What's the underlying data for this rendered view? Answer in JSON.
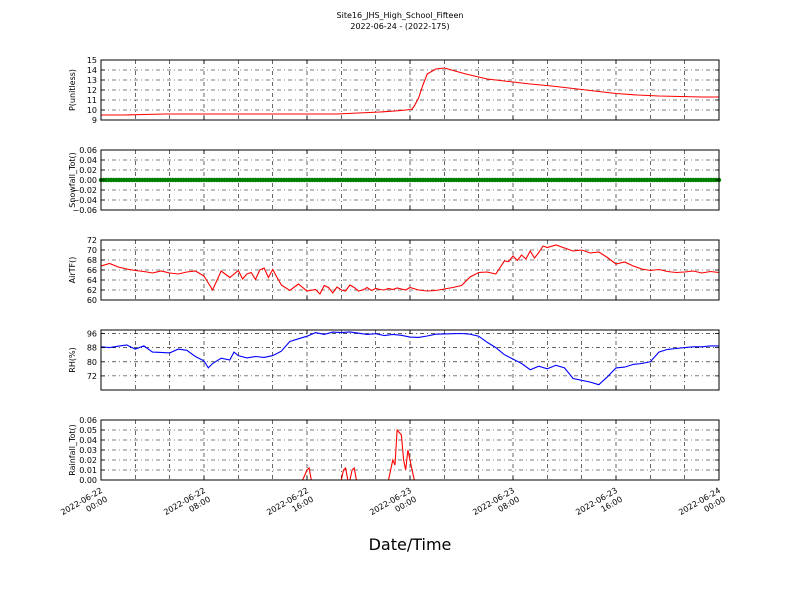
{
  "figure": {
    "title_line1": "Site16_JHS_High_School_Fifteen",
    "title_line2": "2022-06-24 - (2022-175)",
    "xlabel": "Date/Time"
  },
  "chart_data": [
    {
      "type": "line",
      "ylabel": "P(unitless)",
      "ylim": [
        9,
        15
      ],
      "yticks": [
        9,
        10,
        11,
        12,
        13,
        14,
        15
      ],
      "ytick_labels": [
        "9",
        "10",
        "11",
        "12",
        "13",
        "14",
        "15"
      ],
      "grid": true,
      "color": "#ff0000",
      "series": [
        {
          "x": [
            0,
            5,
            10,
            15,
            20,
            25,
            30,
            35,
            40,
            45,
            50,
            55,
            60,
            65,
            70,
            71,
            72,
            72.5,
            73,
            74,
            75,
            76,
            78,
            80,
            85,
            90,
            95,
            100,
            105,
            110,
            115,
            120,
            125,
            130,
            135,
            140,
            144
          ],
          "y": [
            9.5,
            9.5,
            9.55,
            9.6,
            9.6,
            9.6,
            9.6,
            9.6,
            9.6,
            9.6,
            9.6,
            9.6,
            9.7,
            9.8,
            9.95,
            10.0,
            10.05,
            10.1,
            10.4,
            11.2,
            12.5,
            13.6,
            14.1,
            14.2,
            13.6,
            13.1,
            12.85,
            12.6,
            12.4,
            12.15,
            11.9,
            11.65,
            11.5,
            11.4,
            11.35,
            11.3,
            11.3
          ]
        }
      ]
    },
    {
      "type": "scatter",
      "ylabel": "Snowfall_Tot()",
      "ylim": [
        -0.06,
        0.06
      ],
      "yticks": [
        -0.06,
        -0.04,
        -0.02,
        0.0,
        0.02,
        0.04,
        0.06
      ],
      "ytick_labels": [
        "−0.06",
        "−0.04",
        "−0.02",
        "0.00",
        "0.02",
        "0.04",
        "0.06"
      ],
      "grid": true,
      "color": "#008000",
      "series": [
        {
          "x_range": [
            0,
            144
          ],
          "value": 0.0
        }
      ]
    },
    {
      "type": "line",
      "ylabel": "AirTF()",
      "ylim": [
        60,
        72
      ],
      "yticks": [
        60,
        62,
        64,
        66,
        68,
        70,
        72
      ],
      "ytick_labels": [
        "60",
        "62",
        "64",
        "66",
        "68",
        "70",
        "72"
      ],
      "grid": true,
      "color": "#ff0000",
      "series": [
        {
          "x": [
            0,
            2,
            4,
            6,
            8,
            10,
            12,
            14,
            16,
            18,
            20,
            22,
            24,
            26,
            28,
            30,
            32,
            33,
            34,
            35,
            36,
            37,
            38,
            39,
            40,
            42,
            44,
            46,
            48,
            50,
            51,
            52,
            53,
            54,
            55,
            56,
            57,
            58,
            59,
            60,
            61,
            62,
            63,
            64,
            65,
            66,
            67,
            68,
            69,
            70,
            71,
            72,
            74,
            76,
            78,
            80,
            82,
            84,
            86,
            88,
            90,
            92,
            93,
            94,
            95,
            96,
            97,
            98,
            99,
            100,
            101,
            102,
            103,
            104,
            106,
            108,
            110,
            112,
            114,
            116,
            118,
            120,
            122,
            124,
            126,
            128,
            130,
            132,
            134,
            136,
            138,
            140,
            142,
            144
          ],
          "y": [
            66.8,
            67.3,
            66.6,
            66.2,
            65.9,
            65.7,
            65.4,
            65.8,
            65.4,
            65.2,
            65.6,
            65.8,
            64.8,
            62.0,
            65.8,
            64.5,
            65.9,
            64.2,
            65.2,
            65.5,
            64.1,
            66.0,
            66.4,
            64.5,
            66.1,
            63.0,
            61.9,
            63.2,
            61.8,
            62.1,
            61.2,
            62.9,
            62.5,
            61.4,
            62.6,
            62.0,
            61.8,
            63.0,
            62.5,
            61.8,
            62.0,
            62.5,
            61.9,
            62.3,
            62.1,
            62.0,
            62.3,
            62.1,
            62.4,
            62.2,
            62.0,
            62.5,
            62.0,
            61.8,
            61.9,
            62.2,
            62.5,
            62.9,
            64.6,
            65.5,
            65.6,
            65.2,
            66.5,
            67.8,
            67.7,
            68.8,
            67.9,
            69.0,
            68.2,
            69.8,
            68.4,
            69.5,
            70.8,
            70.5,
            71.0,
            70.4,
            69.8,
            70.0,
            69.4,
            69.6,
            68.5,
            67.2,
            67.6,
            66.8,
            66.2,
            65.9,
            66.1,
            65.7,
            65.5,
            65.6,
            65.8,
            65.4,
            65.7,
            65.5
          ]
        }
      ]
    },
    {
      "type": "line",
      "ylabel": "RH(%)",
      "ylim": [
        64,
        98
      ],
      "yticks": [
        72,
        80,
        88,
        96
      ],
      "ytick_labels": [
        "72",
        "80",
        "88",
        "96"
      ],
      "grid": true,
      "color": "#0000ff",
      "series": [
        {
          "x": [
            0,
            2,
            4,
            6,
            8,
            10,
            12,
            14,
            16,
            18,
            20,
            22,
            24,
            25,
            26,
            28,
            30,
            31,
            32,
            34,
            36,
            38,
            40,
            42,
            44,
            46,
            48,
            50,
            52,
            54,
            56,
            58,
            60,
            62,
            64,
            66,
            68,
            70,
            72,
            74,
            76,
            78,
            80,
            82,
            84,
            86,
            88,
            90,
            92,
            94,
            96,
            98,
            100,
            102,
            104,
            106,
            108,
            110,
            112,
            114,
            116,
            118,
            120,
            122,
            124,
            126,
            128,
            130,
            132,
            134,
            136,
            138,
            140,
            142,
            144
          ],
          "y": [
            88.5,
            88.0,
            88.8,
            89.5,
            87.2,
            89.0,
            85.5,
            85.3,
            85.0,
            87.2,
            86.5,
            83.0,
            80.5,
            76.5,
            79.0,
            82.0,
            81.0,
            85.5,
            83.5,
            82.2,
            83.0,
            82.5,
            83.5,
            86.0,
            91.5,
            93.0,
            94.5,
            96.5,
            95.5,
            96.8,
            96.5,
            96.9,
            96.2,
            95.5,
            95.9,
            94.8,
            95.5,
            95.0,
            94.0,
            93.8,
            94.6,
            95.6,
            95.8,
            95.9,
            96.0,
            95.6,
            94.5,
            91.0,
            88.0,
            84.0,
            81.5,
            79.0,
            75.5,
            77.5,
            76.0,
            78.0,
            76.5,
            70.5,
            69.5,
            68.5,
            67.0,
            71.5,
            76.5,
            77.0,
            78.5,
            79.0,
            80.0,
            85.5,
            87.0,
            87.5,
            88.0,
            88.5,
            88.5,
            89.0,
            89.0
          ]
        }
      ]
    },
    {
      "type": "line",
      "ylabel": "Rainfall_Tot()",
      "ylim": [
        0,
        0.06
      ],
      "yticks": [
        0.0,
        0.01,
        0.02,
        0.03,
        0.04,
        0.05,
        0.06
      ],
      "ytick_labels": [
        "0.00",
        "0.01",
        "0.02",
        "0.03",
        "0.04",
        "0.05",
        "0.06"
      ],
      "grid": true,
      "color": "#ff0000",
      "series": [
        {
          "x": [
            0,
            47,
            48,
            48.5,
            49,
            56,
            56.5,
            57,
            57.5,
            58,
            58.5,
            59,
            59.5,
            60,
            67,
            68,
            68.5,
            69,
            70,
            70.5,
            71,
            71.5,
            72,
            72.5,
            73,
            74,
            144
          ],
          "y": [
            0,
            0,
            0.01,
            0.012,
            0,
            0,
            0.01,
            0.012,
            0,
            0,
            0.01,
            0.012,
            0,
            0,
            0,
            0.02,
            0.015,
            0.05,
            0.045,
            0.02,
            0.01,
            0.03,
            0.02,
            0.01,
            0,
            0,
            0
          ]
        }
      ]
    }
  ],
  "x_axis": {
    "range_hours": [
      0,
      144
    ],
    "ticks": [
      0,
      24,
      48,
      72,
      96,
      120,
      144
    ],
    "tick_labels": [
      [
        "2022-06-22",
        "00:00"
      ],
      [
        "2022-06-22",
        "08:00"
      ],
      [
        "2022-06-22",
        "16:00"
      ],
      [
        "2022-06-23",
        "00:00"
      ],
      [
        "2022-06-23",
        "08:00"
      ],
      [
        "2022-06-23",
        "16:00"
      ],
      [
        "2022-06-24",
        "00:00"
      ]
    ]
  }
}
